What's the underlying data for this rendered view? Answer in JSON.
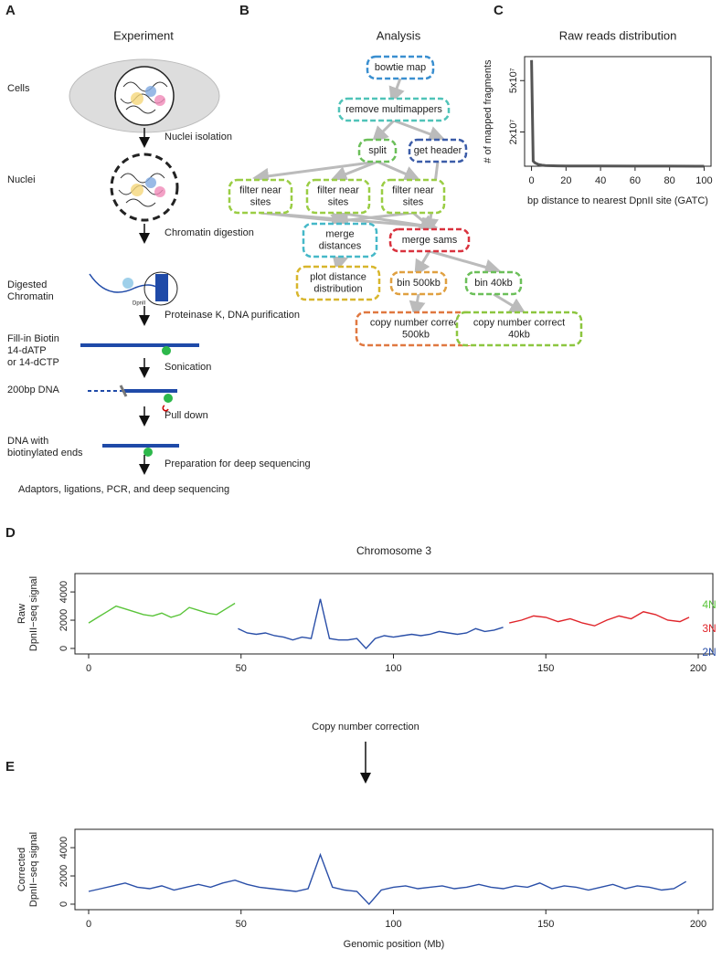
{
  "panels": {
    "a": "A",
    "b": "B",
    "c": "C",
    "d": "D",
    "e": "E"
  },
  "experiment": {
    "title": "Experiment",
    "stages": [
      [
        "Cells"
      ],
      [
        "Nuclei"
      ],
      [
        "Digested",
        "Chromatin"
      ],
      [
        "Fill-in Biotin",
        "14-dATP",
        "or 14-dCTP"
      ],
      [
        "200bp DNA"
      ],
      [
        "DNA with",
        "biotinylated ends"
      ]
    ],
    "steps": [
      "Nuclei isolation",
      "Chromatin digestion",
      "Proteinase K, DNA purification",
      "Sonication",
      "Pull down",
      "Preparation for deep sequencing"
    ],
    "enzyme": "DpnII",
    "final": "Adaptors, ligations, PCR, and deep sequencing"
  },
  "analysis": {
    "title": "Analysis",
    "nodes": [
      {
        "label": [
          "bowtie map"
        ],
        "color": "#3a8fd0"
      },
      {
        "label": [
          "remove multimappers"
        ],
        "color": "#4fc3b8"
      },
      {
        "label": [
          "split"
        ],
        "color": "#6bbf59"
      },
      {
        "label": [
          "get header"
        ],
        "color": "#3b5ca8"
      },
      {
        "label": [
          "filter near",
          "sites"
        ],
        "color": "#9acd44"
      },
      {
        "label": [
          "filter near",
          "sites"
        ],
        "color": "#9acd44"
      },
      {
        "label": [
          "filter near",
          "sites"
        ],
        "color": "#9acd44"
      },
      {
        "label": [
          "merge",
          "distances"
        ],
        "color": "#45b8c8"
      },
      {
        "label": [
          "merge sams"
        ],
        "color": "#d9323e"
      },
      {
        "label": [
          "plot distance",
          "distribution"
        ],
        "color": "#d8b62c"
      },
      {
        "label": [
          "bin 500kb"
        ],
        "color": "#e0a040"
      },
      {
        "label": [
          "bin 40kb"
        ],
        "color": "#6bbf59"
      },
      {
        "label": [
          "copy number correct",
          "500kb"
        ],
        "color": "#e07840"
      },
      {
        "label": [
          "copy number correct",
          "40kb"
        ],
        "color": "#8cc63f"
      }
    ]
  },
  "chart_data": [
    {
      "type": "line",
      "title": "Raw reads distribution",
      "xlabel": "bp distance to nearest DpnII site (GATC)",
      "ylabel": [
        "# of mapped fragments"
      ],
      "color": "#555555",
      "x": [
        0,
        1,
        2,
        3,
        4,
        5,
        6,
        8,
        10,
        15,
        20,
        30,
        40,
        60,
        80,
        100
      ],
      "values": [
        62000000,
        3000000,
        2000000,
        1500000,
        1000000,
        800000,
        600000,
        400000,
        300000,
        200000,
        150000,
        100000,
        80000,
        50000,
        30000,
        20000
      ],
      "xlim": [
        -4,
        104
      ],
      "ylim": [
        0,
        64000000
      ],
      "xticks": [
        0,
        20,
        40,
        60,
        80,
        100
      ],
      "yticks": [
        {
          "value": 20000000,
          "label": "2x10⁷"
        },
        {
          "value": 50000000,
          "label": "5x10⁷"
        }
      ]
    },
    {
      "type": "line",
      "title": "Chromosome 3",
      "ylabel": [
        "Raw",
        "DpnII−seq signal"
      ],
      "annotation": "Copy number correction",
      "series": [
        {
          "name": "4N",
          "color": "#5ac43a",
          "x": [
            0,
            3,
            6,
            9,
            12,
            15,
            18,
            21,
            24,
            27,
            30,
            33,
            36,
            39,
            42,
            45,
            48
          ],
          "values": [
            1800,
            2200,
            2600,
            3000,
            2800,
            2600,
            2400,
            2300,
            2500,
            2200,
            2400,
            2900,
            2700,
            2500,
            2400,
            2800,
            3200
          ]
        },
        {
          "name": "3N",
          "color": "#e0242a",
          "x": [
            138,
            142,
            146,
            150,
            154,
            158,
            162,
            166,
            170,
            174,
            178,
            182,
            186,
            190,
            194,
            197
          ],
          "values": [
            1800,
            2000,
            2300,
            2200,
            1900,
            2100,
            1800,
            1600,
            2000,
            2300,
            2100,
            2600,
            2400,
            2000,
            1900,
            2200
          ]
        },
        {
          "name": "2N",
          "color": "#2a4fa8",
          "x": [
            49,
            52,
            55,
            58,
            61,
            64,
            67,
            70,
            73,
            76,
            79,
            82,
            85,
            88,
            91,
            94,
            97,
            100,
            103,
            106,
            109,
            112,
            115,
            118,
            121,
            124,
            127,
            130,
            133,
            136
          ],
          "values": [
            1400,
            1100,
            1000,
            1100,
            900,
            800,
            600,
            800,
            700,
            3500,
            700,
            600,
            600,
            700,
            0,
            700,
            900,
            800,
            900,
            1000,
            900,
            1000,
            1200,
            1100,
            1000,
            1100,
            1400,
            1200,
            1300,
            1500
          ]
        }
      ],
      "xlim": [
        -4.5,
        204.8
      ],
      "ylim": [
        -390,
        5300
      ],
      "xticks": [
        0,
        50,
        100,
        150,
        200
      ],
      "yticks": [
        0,
        2000,
        4000
      ]
    },
    {
      "type": "line",
      "xlabel": "Genomic position (Mb)",
      "ylabel": [
        "Corrected",
        "DpnII−seq signal"
      ],
      "color": "#2a4fa8",
      "x": [
        0,
        4,
        8,
        12,
        16,
        20,
        24,
        28,
        32,
        36,
        40,
        44,
        48,
        52,
        56,
        60,
        64,
        68,
        72,
        76,
        80,
        84,
        88,
        92,
        96,
        100,
        104,
        108,
        112,
        116,
        120,
        124,
        128,
        132,
        136,
        140,
        144,
        148,
        152,
        156,
        160,
        164,
        168,
        172,
        176,
        180,
        184,
        188,
        192,
        196
      ],
      "values": [
        900,
        1100,
        1300,
        1500,
        1200,
        1100,
        1300,
        1000,
        1200,
        1400,
        1200,
        1500,
        1700,
        1400,
        1200,
        1100,
        1000,
        900,
        1100,
        3500,
        1200,
        1000,
        900,
        0,
        1000,
        1200,
        1300,
        1100,
        1200,
        1300,
        1100,
        1200,
        1400,
        1200,
        1100,
        1300,
        1200,
        1500,
        1100,
        1300,
        1200,
        1000,
        1200,
        1400,
        1100,
        1300,
        1200,
        1000,
        1100,
        1600
      ],
      "xlim": [
        -4.5,
        204.8
      ],
      "ylim": [
        -390,
        5300
      ],
      "xticks": [
        0,
        50,
        100,
        150,
        200
      ],
      "yticks": [
        0,
        2000,
        4000
      ]
    }
  ]
}
